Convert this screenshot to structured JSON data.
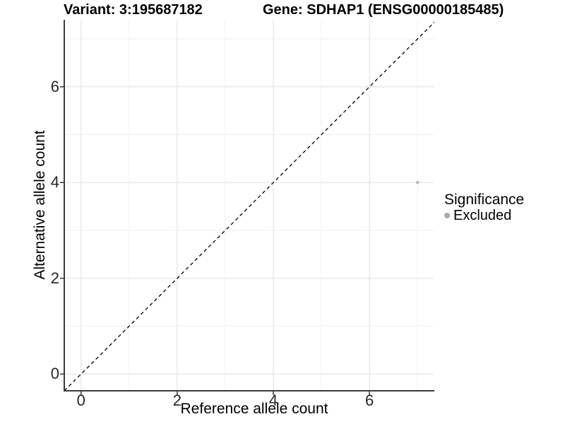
{
  "titles": {
    "variant": "Variant: 3:195687182",
    "gene": "Gene: SDHAP1 (ENSG00000185485)"
  },
  "axes": {
    "x_label": "Reference allele count",
    "y_label": "Alternative allele count"
  },
  "legend": {
    "title": "Significance",
    "items": [
      {
        "label": "Excluded",
        "color": "#a8a8a8"
      }
    ]
  },
  "colors": {
    "background": "#ffffff",
    "grid_major": "#e4e4e4",
    "grid_minor": "#efefef",
    "axis_line": "#3c3c3c",
    "tick_mark": "#333333",
    "tick_text": "#262626",
    "point": "#b9b9b9",
    "reference_line": "#000000"
  },
  "chart_data": {
    "type": "scatter",
    "title_left": "Variant: 3:195687182",
    "title_right": "Gene: SDHAP1 (ENSG00000185485)",
    "xlabel": "Reference allele count",
    "ylabel": "Alternative allele count",
    "xlim": [
      -0.35,
      7.35
    ],
    "ylim": [
      -0.35,
      7.4
    ],
    "x_ticks": [
      0,
      2,
      4,
      6
    ],
    "y_ticks": [
      0,
      2,
      4,
      6
    ],
    "x_minor_ticks": [
      1,
      3,
      5,
      7
    ],
    "y_minor_ticks": [
      1,
      3,
      5,
      7
    ],
    "grid": true,
    "legend_position": "right",
    "series": [
      {
        "name": "Excluded",
        "color": "#b9b9b9",
        "points": [
          [
            7,
            4
          ]
        ]
      }
    ],
    "reference_line": {
      "kind": "identity y=x",
      "style": "dashed",
      "color": "#000000",
      "from": [
        -0.35,
        -0.35
      ],
      "to": [
        7.4,
        7.4
      ]
    }
  }
}
